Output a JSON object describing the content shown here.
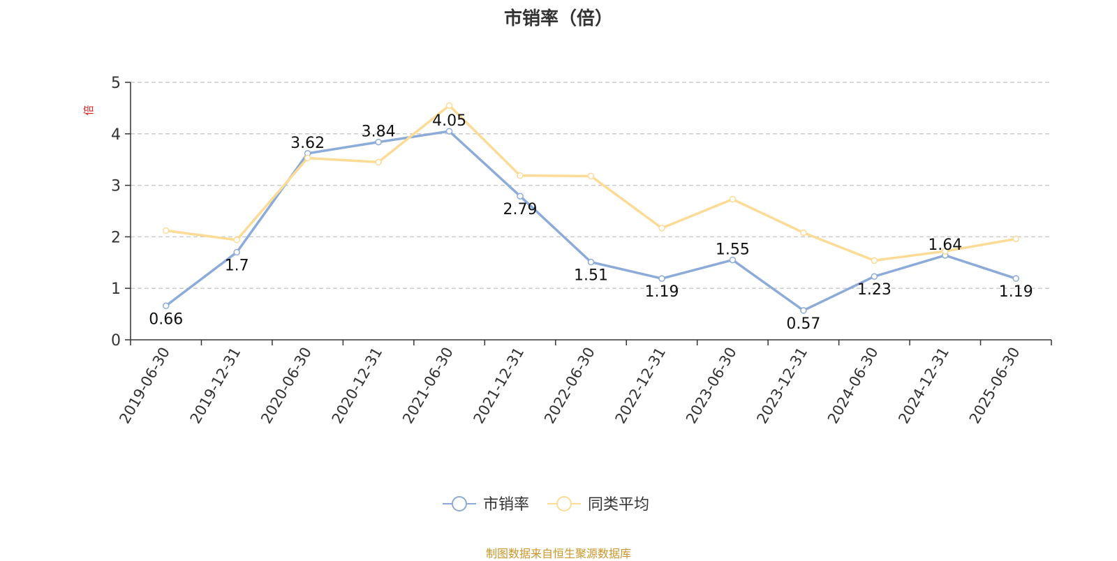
{
  "colors": {
    "series_1": "#8cabd8",
    "series_2": "#fcdb96",
    "ylabel": "#e02020",
    "source_note": "#c8962a",
    "grid": "#cccccc",
    "axis": "#333333"
  },
  "source_note": "制图数据来自恒生聚源数据库",
  "chart_data": {
    "type": "line",
    "title": "市销率（倍）",
    "xlabel": "",
    "ylabel": "倍",
    "ylim": [
      0,
      5
    ],
    "yticks": [
      0,
      1,
      2,
      3,
      4,
      5
    ],
    "grid": true,
    "legend_position": "bottom-center",
    "categories": [
      "2019-06-30",
      "2019-12-31",
      "2020-06-30",
      "2020-12-31",
      "2021-06-30",
      "2021-12-31",
      "2022-06-30",
      "2022-12-31",
      "2023-06-30",
      "2023-12-31",
      "2024-06-30",
      "2024-12-31",
      "2025-06-30"
    ],
    "series": [
      {
        "name": "市销率",
        "values": [
          0.66,
          1.7,
          3.62,
          3.84,
          4.05,
          2.79,
          1.51,
          1.19,
          1.55,
          0.57,
          1.23,
          1.64,
          1.19
        ],
        "show_labels": true
      },
      {
        "name": "同类平均",
        "values": [
          2.12,
          1.94,
          3.53,
          3.45,
          4.55,
          3.19,
          3.18,
          2.17,
          2.73,
          2.08,
          1.54,
          1.72,
          1.96
        ],
        "show_labels": false
      }
    ]
  }
}
